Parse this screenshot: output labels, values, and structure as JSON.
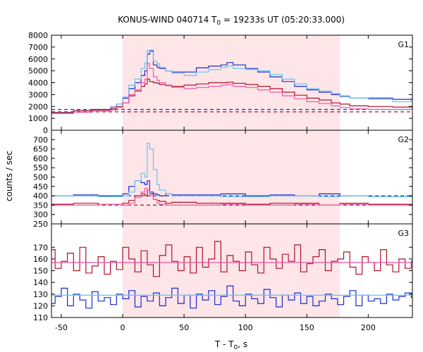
{
  "chart_data": {
    "type": "line",
    "title_parts": [
      "KONUS-WIND 040714 T",
      "0",
      " = 19233s UT (05:20:33.000)"
    ],
    "xlabel_parts": [
      "T - T",
      "0",
      ", s"
    ],
    "ylabel": "counts / sec",
    "xlim": [
      -58,
      236
    ],
    "xticks": [
      "-50",
      "0",
      "50",
      "100",
      "150",
      "200"
    ],
    "shade_interval": [
      0,
      177
    ],
    "colors": {
      "shade": "#fde5e8",
      "dark_blue": "#1a2ccc",
      "light_blue": "#66c6ef",
      "dark_red": "#b0102a",
      "pink": "#ee5aa8"
    },
    "panels": [
      {
        "name": "G1",
        "ylim": [
          0,
          8000
        ],
        "yticks": [
          "0",
          "1000",
          "2000",
          "3000",
          "4000",
          "5000",
          "6000",
          "7000",
          "8000"
        ],
        "background_levels": [
          1550,
          1750
        ],
        "series": [
          {
            "color": "dark_blue",
            "x": [
              -58,
              -40,
              -25,
              -10,
              -5,
              0,
              5,
              10,
              15,
              18,
              20,
              22,
              25,
              28,
              30,
              35,
              40,
              50,
              60,
              70,
              80,
              85,
              90,
              100,
              110,
              120,
              130,
              140,
              150,
              160,
              170,
              177,
              185,
              200,
              220,
              235
            ],
            "y": [
              1500,
              1650,
              1750,
              1950,
              2200,
              2700,
              3500,
              4000,
              4600,
              5000,
              6400,
              6700,
              5500,
              5300,
              5200,
              5000,
              4900,
              4900,
              5250,
              5400,
              5500,
              5700,
              5500,
              5200,
              4900,
              4500,
              4100,
              3700,
              3400,
              3200,
              3000,
              2850,
              2700,
              2700,
              2600,
              2650
            ]
          },
          {
            "color": "light_blue",
            "x": [
              -58,
              -40,
              -25,
              -10,
              -5,
              0,
              5,
              10,
              15,
              18,
              20,
              22,
              25,
              28,
              30,
              35,
              40,
              50,
              60,
              70,
              80,
              85,
              90,
              100,
              110,
              120,
              130,
              140,
              150,
              160,
              170,
              177,
              185,
              200,
              220,
              235
            ],
            "y": [
              1450,
              1600,
              1700,
              1900,
              2200,
              2800,
              3800,
              4300,
              5200,
              5700,
              6700,
              6600,
              5800,
              5600,
              5300,
              5000,
              4800,
              4600,
              4900,
              5100,
              5300,
              5400,
              5200,
              5100,
              5000,
              4700,
              4300,
              3900,
              3500,
              3300,
              3100,
              2900,
              2700,
              2600,
              2400,
              2500
            ]
          },
          {
            "color": "dark_red",
            "x": [
              -58,
              -40,
              -25,
              -10,
              -5,
              0,
              5,
              10,
              15,
              18,
              20,
              22,
              25,
              28,
              30,
              35,
              40,
              50,
              60,
              70,
              80,
              85,
              90,
              100,
              110,
              120,
              130,
              140,
              150,
              160,
              170,
              177,
              185,
              200,
              220,
              235
            ],
            "y": [
              1500,
              1650,
              1700,
              1800,
              2000,
              2300,
              2900,
              3300,
              3700,
              3900,
              4300,
              4100,
              4000,
              3950,
              3850,
              3750,
              3700,
              3800,
              3900,
              4000,
              4000,
              4050,
              3950,
              3850,
              3700,
              3500,
              3200,
              2950,
              2700,
              2550,
              2300,
              2200,
              2050,
              2000,
              1950,
              2000
            ]
          },
          {
            "color": "pink",
            "x": [
              -58,
              -40,
              -25,
              -10,
              -5,
              0,
              5,
              10,
              15,
              18,
              20,
              22,
              25,
              28,
              30,
              35,
              40,
              50,
              60,
              70,
              80,
              85,
              90,
              100,
              110,
              120,
              130,
              140,
              150,
              160,
              170,
              177,
              185,
              200,
              220,
              235
            ],
            "y": [
              1400,
              1500,
              1600,
              1700,
              1900,
              2300,
              3000,
              3400,
              4000,
              4300,
              5600,
              5200,
              4500,
              4200,
              4000,
              3800,
              3600,
              3500,
              3600,
              3700,
              3800,
              3850,
              3700,
              3600,
              3400,
              3200,
              2900,
              2650,
              2400,
              2250,
              2050,
              1900,
              1800,
              1750,
              1750,
              1800
            ]
          }
        ]
      },
      {
        "name": "G2",
        "ylim": [
          250,
          750
        ],
        "yticks": [
          "250",
          "300",
          "350",
          "400",
          "450",
          "500",
          "550",
          "600",
          "650",
          "700"
        ],
        "background_levels": [
          350,
          400
        ],
        "series": [
          {
            "color": "dark_blue",
            "x": [
              -58,
              -40,
              -20,
              0,
              5,
              10,
              15,
              18,
              20,
              22,
              25,
              28,
              30,
              35,
              40,
              60,
              80,
              100,
              120,
              140,
              160,
              177,
              200,
              235
            ],
            "y": [
              400,
              405,
              400,
              410,
              450,
              480,
              470,
              460,
              480,
              420,
              410,
              405,
              400,
              410,
              405,
              405,
              410,
              400,
              405,
              400,
              410,
              400,
              395,
              400
            ]
          },
          {
            "color": "light_blue",
            "x": [
              -58,
              -40,
              -20,
              0,
              5,
              10,
              15,
              18,
              20,
              22,
              25,
              28,
              30,
              35,
              40,
              60,
              80,
              100,
              120,
              140,
              160,
              177,
              200,
              235
            ],
            "y": [
              400,
              400,
              395,
              400,
              420,
              480,
              520,
              500,
              680,
              650,
              540,
              460,
              430,
              410,
              400,
              400,
              395,
              395,
              400,
              400,
              395,
              400,
              395,
              395
            ]
          },
          {
            "color": "dark_red",
            "x": [
              -58,
              -40,
              -20,
              0,
              5,
              10,
              15,
              18,
              20,
              22,
              25,
              28,
              30,
              35,
              40,
              60,
              80,
              100,
              120,
              140,
              160,
              177,
              200,
              235
            ],
            "y": [
              355,
              360,
              355,
              360,
              375,
              400,
              410,
              400,
              430,
              410,
              380,
              375,
              370,
              360,
              365,
              360,
              360,
              355,
              360,
              360,
              350,
              360,
              355,
              355
            ]
          },
          {
            "color": "pink",
            "x": [
              -58,
              -40,
              -20,
              0,
              5,
              10,
              15,
              18,
              20,
              22,
              25,
              28,
              30,
              35,
              40,
              60,
              80,
              100,
              120,
              140,
              160,
              177,
              200,
              235
            ],
            "y": [
              350,
              350,
              355,
              350,
              360,
              390,
              420,
              440,
              430,
              400,
              380,
              360,
              355,
              350,
              350,
              350,
              355,
              350,
              350,
              355,
              350,
              355,
              350,
              350
            ]
          }
        ]
      },
      {
        "name": "G3",
        "ylim": [
          110,
          190
        ],
        "yticks": [
          "110",
          "120",
          "130",
          "140",
          "150",
          "160",
          "170"
        ],
        "fit_levels": [
          157,
          129
        ],
        "series": [
          {
            "color": "dark_red",
            "x": [
              -58,
              -55,
              -50,
              -45,
              -40,
              -35,
              -30,
              -25,
              -20,
              -15,
              -10,
              -5,
              0,
              5,
              10,
              15,
              20,
              25,
              30,
              35,
              40,
              45,
              50,
              55,
              60,
              65,
              70,
              75,
              80,
              85,
              90,
              95,
              100,
              105,
              110,
              115,
              120,
              125,
              130,
              135,
              140,
              145,
              150,
              155,
              160,
              165,
              170,
              175,
              180,
              185,
              190,
              195,
              200,
              205,
              210,
              215,
              220,
              225,
              230,
              235
            ],
            "y": [
              168,
              152,
              158,
              165,
              150,
              170,
              148,
              154,
              162,
              147,
              158,
              151,
              170,
              160,
              149,
              167,
              155,
              145,
              163,
              172,
              158,
              150,
              162,
              148,
              170,
              153,
              160,
              175,
              149,
              163,
              158,
              150,
              166,
              155,
              148,
              170,
              160,
              152,
              164,
              158,
              172,
              149,
              156,
              162,
              168,
              150,
              158,
              160,
              166,
              153,
              147,
              162,
              157,
              150,
              168,
              155,
              149,
              160,
              152,
              158
            ]
          },
          {
            "color": "dark_blue",
            "x": [
              -58,
              -55,
              -50,
              -45,
              -40,
              -35,
              -30,
              -25,
              -20,
              -15,
              -10,
              -5,
              0,
              5,
              10,
              15,
              20,
              25,
              30,
              35,
              40,
              45,
              50,
              55,
              60,
              65,
              70,
              75,
              80,
              85,
              90,
              95,
              100,
              105,
              110,
              115,
              120,
              125,
              130,
              135,
              140,
              145,
              150,
              155,
              160,
              165,
              170,
              175,
              180,
              185,
              190,
              195,
              200,
              205,
              210,
              215,
              220,
              225,
              230,
              235
            ],
            "y": [
              122,
              128,
              135,
              120,
              130,
              125,
              118,
              132,
              124,
              127,
              121,
              130,
              126,
              133,
              119,
              128,
              124,
              131,
              120,
              127,
              135,
              122,
              129,
              118,
              130,
              125,
              133,
              121,
              128,
              137,
              124,
              120,
              130,
              126,
              122,
              134,
              127,
              119,
              129,
              125,
              131,
              122,
              128,
              120,
              124,
              130,
              126,
              121,
              128,
              133,
              120,
              129,
              124,
              126,
              122,
              130,
              125,
              128,
              131,
              127
            ]
          },
          {
            "color": "pink",
            "x": [
              -58,
              235
            ],
            "y": [
              157,
              157
            ]
          },
          {
            "color": "light_blue",
            "x": [
              -58,
              235
            ],
            "y": [
              129,
              129
            ]
          }
        ]
      }
    ]
  }
}
